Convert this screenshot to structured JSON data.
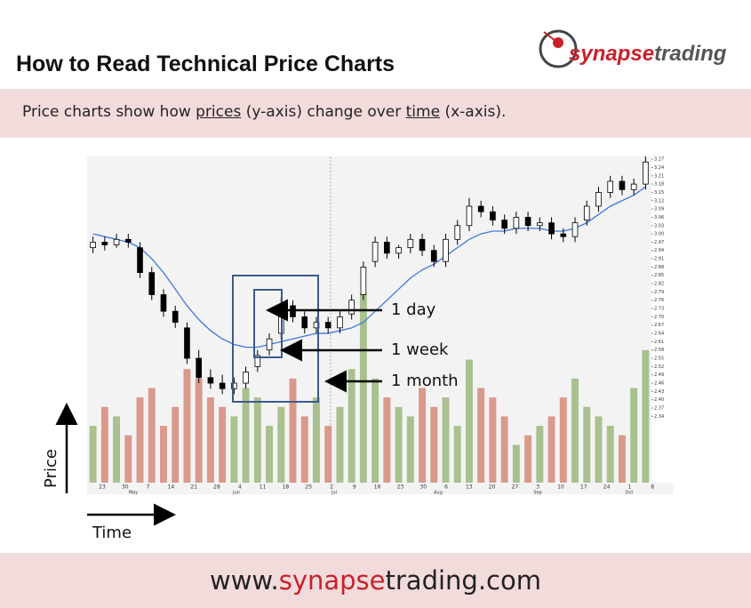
{
  "header": {
    "title": "How to Read Technical Price Charts",
    "logo": {
      "first": "synapse",
      "second": "trading"
    }
  },
  "subtitle": {
    "segments": [
      {
        "text": "Price charts show how "
      },
      {
        "text": "prices",
        "underline": true
      },
      {
        "text": " (y-axis) change over "
      },
      {
        "text": "time",
        "underline": true
      },
      {
        "text": " (x-axis)."
      }
    ]
  },
  "chart_data": {
    "type": "candlestick",
    "xtick_labels": [
      "23",
      "30",
      "7",
      "14",
      "21",
      "28",
      "4",
      "11",
      "18",
      "25",
      "2",
      "9",
      "16",
      "23",
      "30",
      "6",
      "13",
      "20",
      "27",
      "3",
      "10",
      "17",
      "24",
      "1",
      "8"
    ],
    "month_labels": [
      "May",
      "Jun",
      "Jul",
      "Aug",
      "Sep",
      "Oct"
    ],
    "open": [
      2.95,
      2.97,
      2.96,
      2.98,
      2.95,
      2.86,
      2.78,
      2.72,
      2.66,
      2.55,
      2.48,
      2.46,
      2.44,
      2.46,
      2.52,
      2.58,
      2.64,
      2.74,
      2.7,
      2.66,
      2.68,
      2.66,
      2.71,
      2.78,
      2.9,
      2.97,
      2.93,
      2.95,
      2.98,
      2.94,
      2.9,
      2.98,
      3.03,
      3.1,
      3.08,
      3.05,
      3.02,
      3.06,
      3.03,
      3.04,
      3.0,
      2.99,
      3.05,
      3.1,
      3.15,
      3.19,
      3.16,
      3.18
    ],
    "high": [
      2.99,
      2.99,
      3.0,
      3.0,
      2.97,
      2.88,
      2.8,
      2.74,
      2.68,
      2.58,
      2.51,
      2.49,
      2.48,
      2.52,
      2.58,
      2.64,
      2.77,
      2.76,
      2.72,
      2.7,
      2.7,
      2.72,
      2.78,
      2.9,
      2.99,
      2.99,
      2.96,
      3.0,
      3.0,
      2.96,
      3.0,
      3.05,
      3.13,
      3.12,
      3.1,
      3.07,
      3.08,
      3.08,
      3.06,
      3.06,
      3.02,
      3.06,
      3.12,
      3.17,
      3.21,
      3.21,
      3.2,
      3.28
    ],
    "low": [
      2.93,
      2.94,
      2.95,
      2.95,
      2.84,
      2.76,
      2.7,
      2.66,
      2.53,
      2.46,
      2.44,
      2.42,
      2.42,
      2.44,
      2.5,
      2.56,
      2.62,
      2.68,
      2.64,
      2.64,
      2.64,
      2.64,
      2.69,
      2.76,
      2.88,
      2.91,
      2.91,
      2.93,
      2.92,
      2.88,
      2.88,
      2.96,
      3.01,
      3.06,
      3.03,
      3.0,
      3.0,
      3.01,
      3.01,
      2.98,
      2.97,
      2.97,
      3.03,
      3.08,
      3.13,
      3.14,
      3.14,
      3.16
    ],
    "close": [
      2.97,
      2.96,
      2.98,
      2.97,
      2.86,
      2.78,
      2.72,
      2.68,
      2.55,
      2.48,
      2.46,
      2.44,
      2.46,
      2.5,
      2.56,
      2.62,
      2.74,
      2.7,
      2.66,
      2.68,
      2.66,
      2.7,
      2.76,
      2.88,
      2.97,
      2.93,
      2.95,
      2.98,
      2.94,
      2.9,
      2.98,
      3.03,
      3.1,
      3.08,
      3.05,
      3.02,
      3.06,
      3.03,
      3.04,
      3.0,
      2.99,
      3.04,
      3.1,
      3.15,
      3.19,
      3.16,
      3.18,
      3.26
    ],
    "moving_average": [
      3.0,
      2.99,
      2.98,
      2.97,
      2.95,
      2.91,
      2.86,
      2.8,
      2.74,
      2.69,
      2.65,
      2.62,
      2.6,
      2.59,
      2.59,
      2.6,
      2.61,
      2.62,
      2.63,
      2.64,
      2.64,
      2.65,
      2.66,
      2.68,
      2.72,
      2.76,
      2.8,
      2.84,
      2.87,
      2.89,
      2.92,
      2.95,
      2.98,
      3.0,
      3.01,
      3.01,
      3.02,
      3.02,
      3.02,
      3.01,
      3.01,
      3.02,
      3.04,
      3.07,
      3.1,
      3.12,
      3.14,
      3.17
    ],
    "volume": [
      30,
      40,
      35,
      25,
      45,
      50,
      30,
      40,
      60,
      55,
      45,
      40,
      35,
      50,
      45,
      30,
      40,
      55,
      35,
      45,
      30,
      40,
      60,
      100,
      55,
      45,
      40,
      35,
      50,
      40,
      45,
      30,
      65,
      50,
      45,
      35,
      20,
      25,
      30,
      35,
      45,
      55,
      40,
      35,
      30,
      25,
      50,
      70
    ],
    "ylim": [
      2.1,
      3.28
    ],
    "yticks": [
      3.27,
      3.24,
      3.21,
      3.18,
      3.15,
      3.12,
      3.09,
      3.06,
      3.03,
      {
        "value": 3.0,
        "label": "3.00"
      },
      2.97,
      2.94,
      2.91,
      2.88,
      2.85,
      2.82,
      2.79,
      2.76,
      2.73,
      {
        "value": 2.7,
        "label": "2.70"
      },
      2.67,
      2.64,
      2.61,
      2.58,
      2.55,
      2.52,
      2.49,
      2.46,
      2.43,
      {
        "value": 2.4,
        "label": "2.40"
      },
      2.37,
      2.34
    ],
    "y2lim": [
      0,
      100
    ],
    "up_color": "#ffffff",
    "down_color": "#000000",
    "volume_up_color": "#a9c08f",
    "volume_down_color": "#d9998b",
    "ma_color": "#3f78e0"
  },
  "annotations": [
    "1 day",
    "1 week",
    "1 month"
  ],
  "axis_labels": {
    "price": "Price",
    "time": "Time"
  },
  "footer": {
    "segments": [
      {
        "text": "www.",
        "color": "#222222"
      },
      {
        "text": "synapse",
        "color": "#c9202a"
      },
      {
        "text": "trading.com",
        "color": "#222222"
      }
    ]
  }
}
